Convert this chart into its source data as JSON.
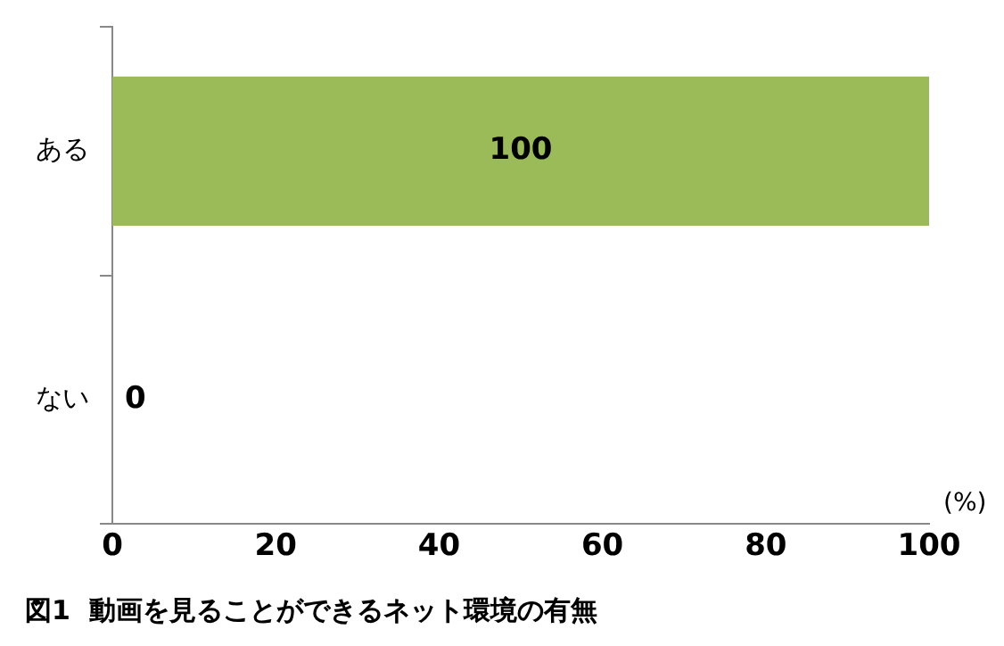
{
  "chart_data": {
    "type": "bar",
    "orientation": "horizontal",
    "title": "図1  動画を見ることができるネット環境の有無",
    "xlabel": "(%)",
    "categories": [
      "ある",
      "ない"
    ],
    "values": [
      100,
      0
    ],
    "color": "#9bbb59",
    "xlim": [
      0,
      100
    ],
    "xticks": [
      0,
      20,
      40,
      60,
      80,
      100
    ],
    "data_labels": true,
    "legend": false
  }
}
